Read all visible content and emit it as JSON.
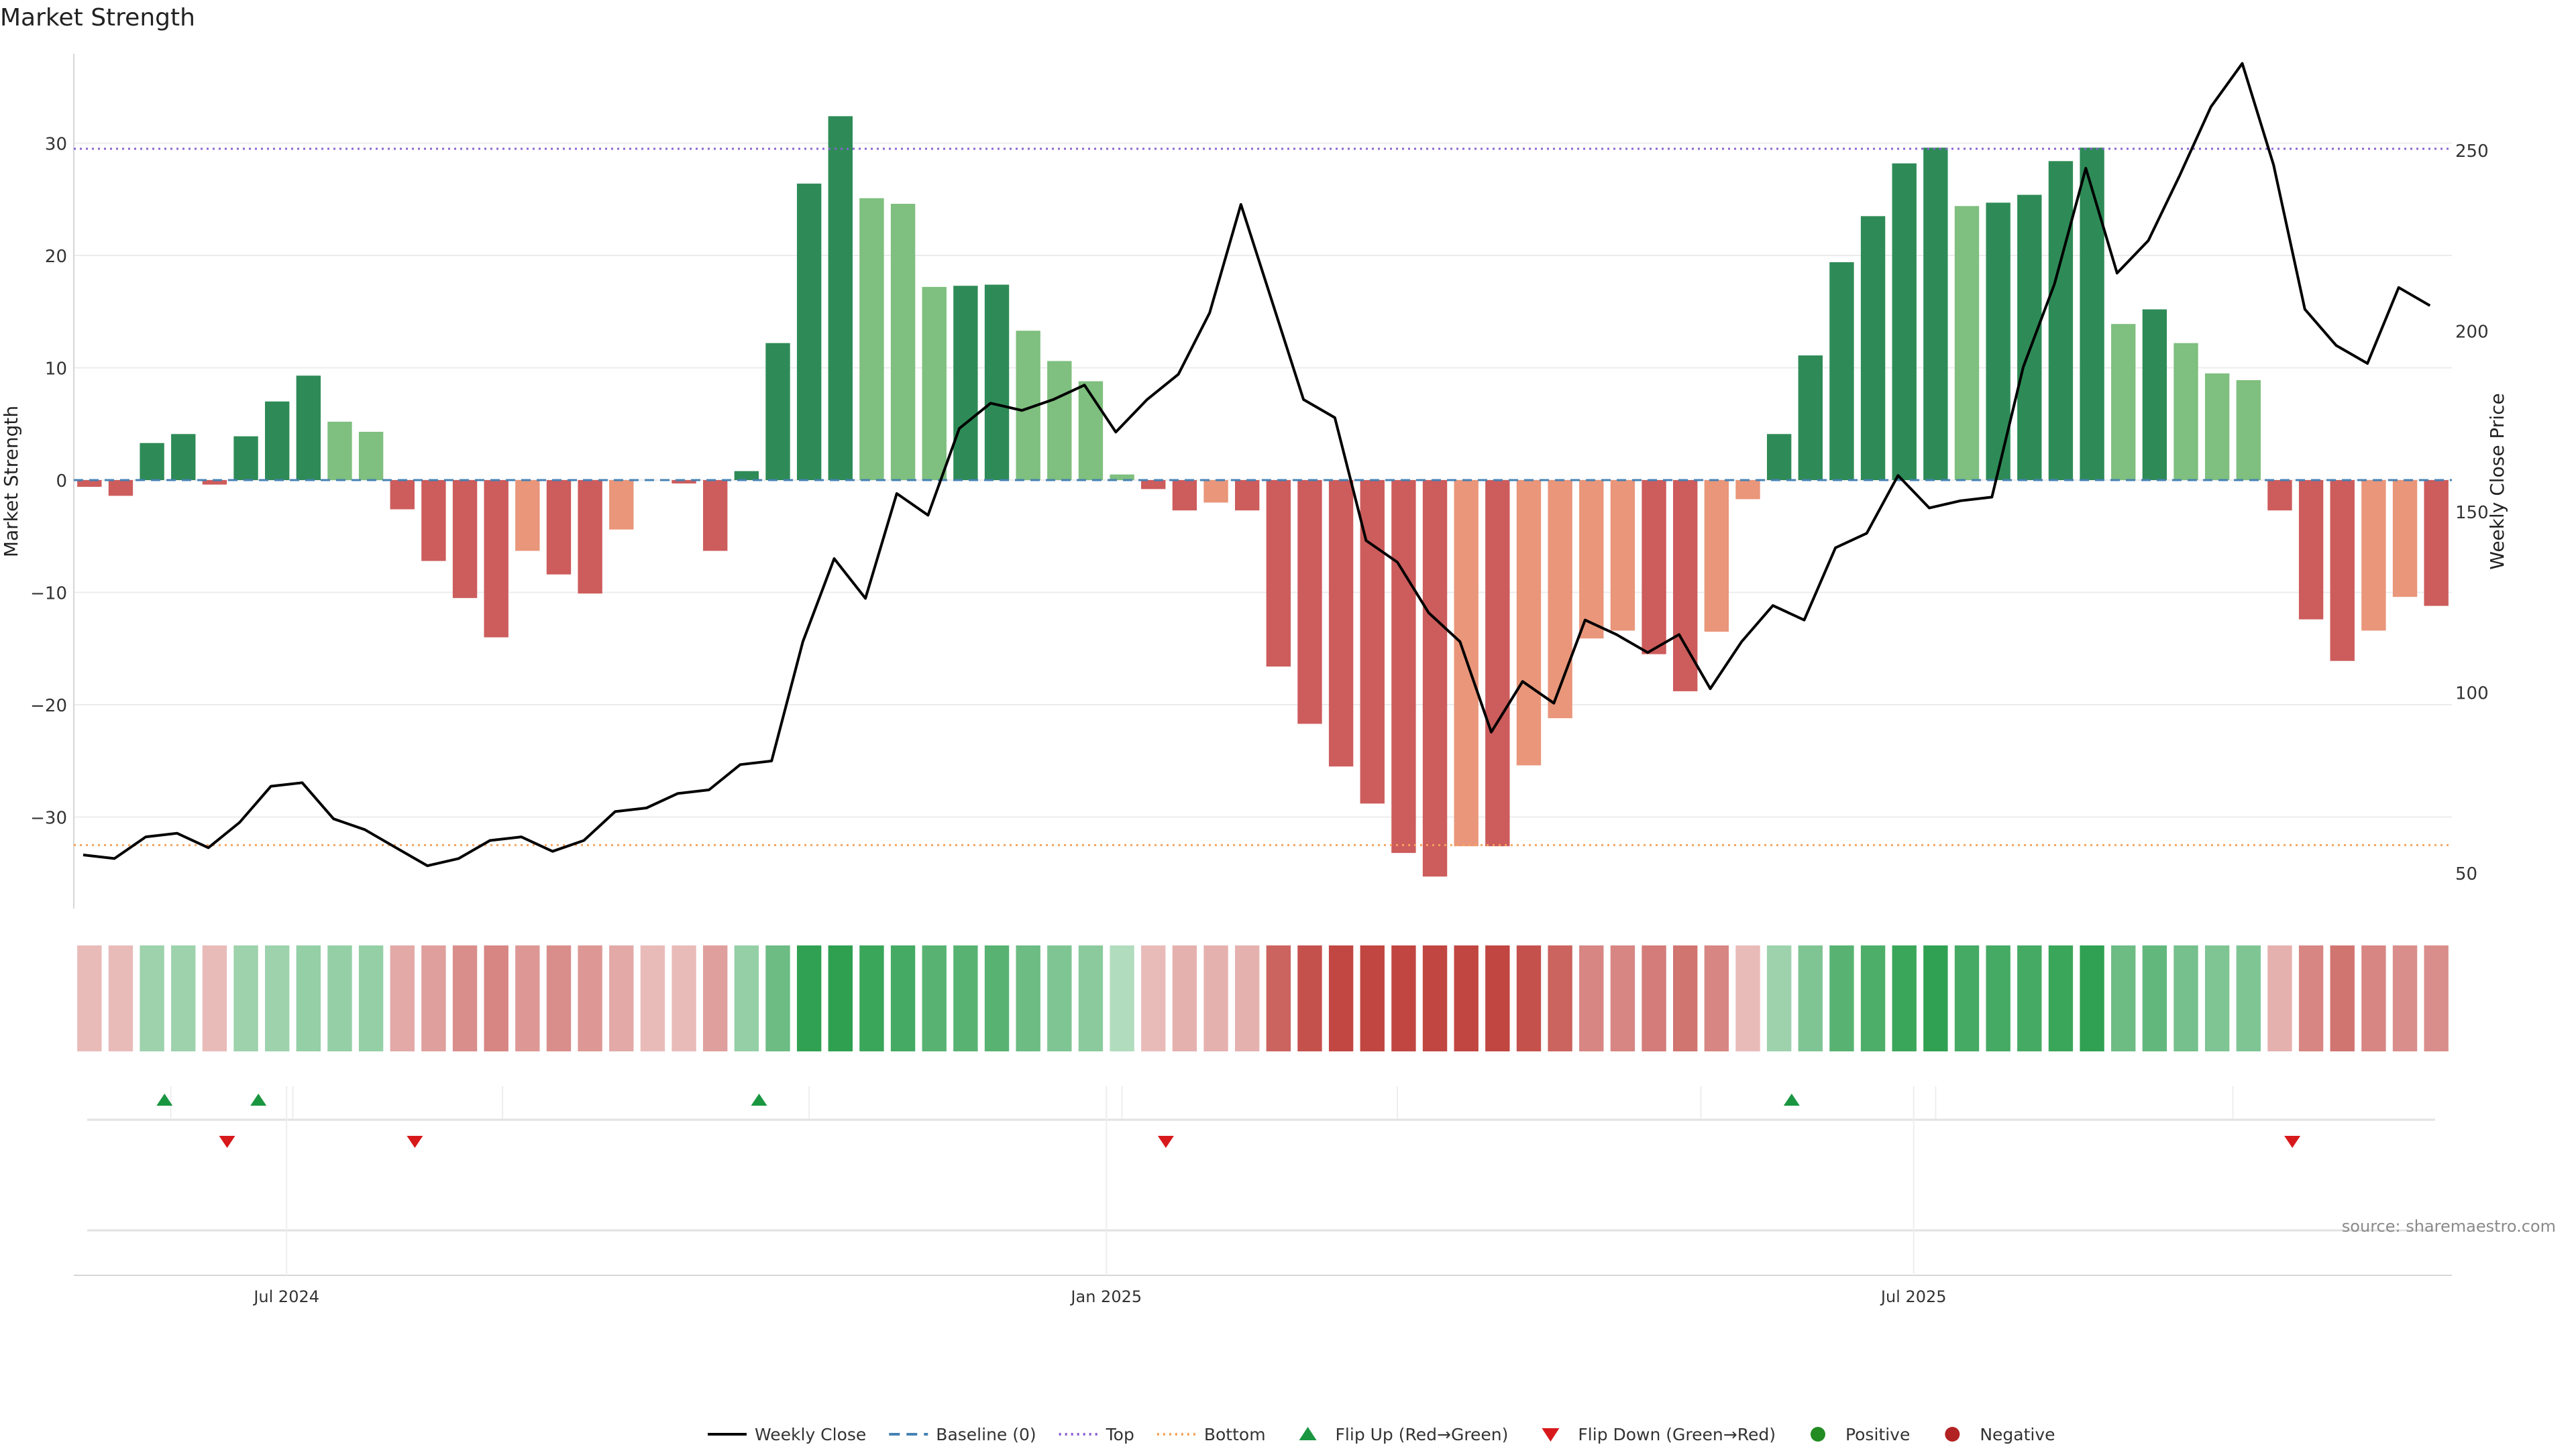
{
  "title": "Market Strength",
  "source": "source: sharemaestro.com",
  "colors": {
    "strong_green": "#2e8b57",
    "light_green": "#7fbf7f",
    "strong_red": "#cd5c5c",
    "light_red": "#e9967a",
    "line": "#000000",
    "top": "#8a63d2",
    "bottom": "#f4a460",
    "baseline": "#4682b4",
    "flip_up": "#1a9641",
    "flip_down": "#d7191c",
    "positive": "#228b22",
    "negative": "#b22222"
  },
  "legend": [
    {
      "label": "Weekly Close",
      "kind": "line"
    },
    {
      "label": "Baseline (0)",
      "kind": "dash"
    },
    {
      "label": "Top",
      "kind": "dot-top"
    },
    {
      "label": "Bottom",
      "kind": "dot-bottom"
    },
    {
      "label": "Flip Up (Red→Green)",
      "kind": "tri-up"
    },
    {
      "label": "Flip Down (Green→Red)",
      "kind": "tri-down"
    },
    {
      "label": "Positive",
      "kind": "dot-pos"
    },
    {
      "label": "Negative",
      "kind": "dot-neg"
    }
  ],
  "chart_data": {
    "type": "bar",
    "title": "Market Strength",
    "ylabel": "Market Strength",
    "y2label": "Weekly Close Price",
    "ylim": [
      -38,
      38
    ],
    "y2lim": [
      40,
      285
    ],
    "yticks": [
      -30,
      -20,
      -10,
      0,
      10,
      20,
      30
    ],
    "y2ticks": [
      50,
      100,
      150,
      200,
      250
    ],
    "xticks": [
      {
        "label": "Jul 2024",
        "week": 6.3
      },
      {
        "label": "Jan 2025",
        "week": 32.5
      },
      {
        "label": "Jul 2025",
        "week": 58.3
      }
    ],
    "week_count": 76,
    "top_line": 29.5,
    "bottom_line": -32.5,
    "baseline": 0,
    "grid": true,
    "legend_position": "bottom",
    "strength": [
      -0.6,
      -1.4,
      3.3,
      4.1,
      -0.4,
      3.9,
      7.0,
      9.3,
      5.2,
      4.3,
      -2.6,
      -7.2,
      -10.5,
      -14.0,
      -6.3,
      -8.4,
      -10.1,
      -4.4,
      0,
      -0.3,
      -6.3,
      0.8,
      12.2,
      26.4,
      32.4,
      25.1,
      24.6,
      17.2,
      17.3,
      17.4,
      13.3,
      10.6,
      8.8,
      0.5,
      -0.8,
      -2.7,
      -2.0,
      -2.7,
      -16.6,
      -21.7,
      -25.5,
      -28.8,
      -33.2,
      -35.3,
      -32.6,
      -32.6,
      -25.4,
      -21.2,
      -14.1,
      -13.4,
      -15.5,
      -18.8,
      -13.5,
      -1.7,
      4.1,
      11.1,
      19.4,
      23.5,
      28.2,
      29.6,
      24.4,
      24.7,
      25.4,
      28.4,
      29.6,
      13.9,
      15.2,
      12.2,
      9.5,
      8.9,
      -2.7,
      -12.4,
      -16.1,
      -13.4,
      -10.4,
      -11.2
    ],
    "weekly_close": [
      55,
      54,
      60,
      61,
      57,
      64,
      74,
      75,
      65,
      62,
      57,
      52,
      54,
      59,
      60,
      56,
      59,
      67,
      68,
      72,
      73,
      80,
      81,
      114,
      137,
      126,
      155,
      149,
      173,
      180,
      178,
      181,
      185,
      172,
      181,
      188,
      205,
      235,
      208,
      181,
      176,
      142,
      136,
      122,
      114,
      89,
      103,
      97,
      120,
      116,
      111,
      116,
      101,
      114,
      124,
      120,
      140,
      144,
      160,
      151,
      153,
      154,
      190,
      213,
      245,
      216,
      225,
      243,
      262,
      274,
      246,
      206,
      196,
      191,
      212,
      207
    ],
    "heat_strength": [
      8,
      8,
      12,
      12,
      8,
      12,
      12,
      14,
      14,
      14,
      12,
      14,
      18,
      20,
      16,
      18,
      16,
      12,
      8,
      8,
      14,
      14,
      22,
      34,
      38,
      32,
      30,
      26,
      26,
      26,
      22,
      18,
      16,
      8,
      8,
      10,
      10,
      10,
      28,
      32,
      34,
      36,
      38,
      40,
      38,
      38,
      32,
      28,
      20,
      20,
      22,
      24,
      20,
      8,
      12,
      18,
      26,
      28,
      32,
      34,
      30,
      30,
      30,
      32,
      34,
      22,
      24,
      20,
      18,
      18,
      10,
      20,
      24,
      20,
      18,
      18
    ],
    "flip_up_weeks": [
      2.4,
      5.4,
      21.4,
      54.4
    ],
    "flip_down_weeks": [
      4.4,
      10.4,
      34.4,
      70.4
    ]
  }
}
